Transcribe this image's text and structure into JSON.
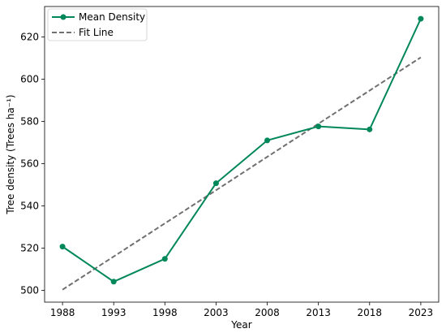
{
  "chart_data": {
    "type": "line",
    "title": "",
    "xlabel": "Year",
    "ylabel": "Tree density (Trees ha⁻¹)",
    "x": [
      1988,
      1993,
      1998,
      2003,
      2008,
      2013,
      2018,
      2023
    ],
    "x_tick_labels": [
      "1988",
      "1993",
      "1998",
      "2003",
      "2008",
      "2013",
      "2018",
      "2023"
    ],
    "y_ticks": [
      500,
      520,
      540,
      560,
      580,
      600,
      620
    ],
    "y_tick_labels": [
      "500",
      "520",
      "540",
      "560",
      "580",
      "600",
      "620"
    ],
    "xlim": [
      1986.25,
      2024.75
    ],
    "ylim": [
      494.4,
      634.4
    ],
    "grid": false,
    "legend_position": "top-left",
    "series": [
      {
        "name": "Mean Density",
        "style": "solid-with-markers",
        "color": "#00875a",
        "values": [
          520.7,
          504.1,
          514.9,
          550.7,
          571.0,
          577.6,
          576.2,
          628.6
        ]
      },
      {
        "name": "Fit Line",
        "style": "dashed",
        "color": "#707070",
        "values": [
          500.3,
          516.0,
          531.7,
          547.4,
          563.2,
          578.9,
          594.6,
          610.3
        ]
      }
    ]
  }
}
